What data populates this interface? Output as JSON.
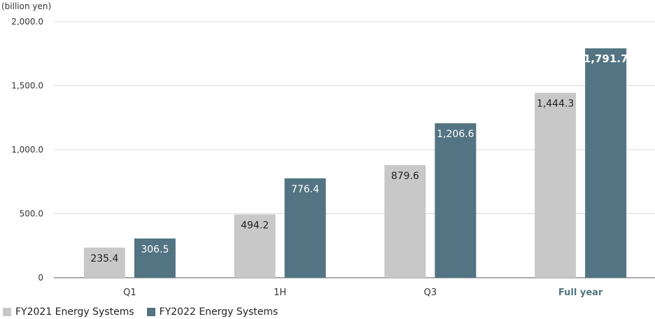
{
  "chart_data": {
    "type": "bar",
    "unit_label": "(billion yen)",
    "categories": [
      "Q1",
      "1H",
      "Q3",
      "Full year"
    ],
    "highlight_category": "Full year",
    "series": [
      {
        "name": "FY2021 Energy Systems",
        "color": "#c8c8c8",
        "values": [
          235.4,
          494.2,
          879.6,
          1444.3
        ],
        "labels": [
          "235.4",
          "494.2",
          "879.6",
          "1,444.3"
        ]
      },
      {
        "name": "FY2022 Energy Systems",
        "color": "#537482",
        "values": [
          306.5,
          776.4,
          1206.6,
          1791.7
        ],
        "labels": [
          "306.5",
          "776.4",
          "1,206.6",
          "1,791.7"
        ]
      }
    ],
    "y_ticks": [
      {
        "value": 0,
        "label": "0"
      },
      {
        "value": 500,
        "label": "500.0"
      },
      {
        "value": 1000,
        "label": "1,000.0"
      },
      {
        "value": 1500,
        "label": "1,500.0"
      },
      {
        "value": 2000,
        "label": "2,000.0"
      }
    ],
    "ylim": [
      0,
      2000
    ],
    "grid": true,
    "legend_position": "bottom-left"
  }
}
